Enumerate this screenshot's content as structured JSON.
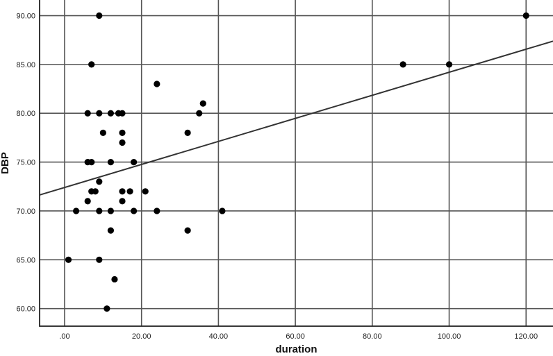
{
  "chart_data": {
    "type": "scatter",
    "title": "",
    "xlabel": "duration",
    "ylabel": "DBP",
    "xlim": [
      -6.5,
      127
    ],
    "ylim": [
      58.2,
      91.6
    ],
    "x_ticks": [
      0,
      20,
      40,
      60,
      80,
      100,
      120
    ],
    "x_tick_labels": [
      ".00",
      "20.00",
      "40.00",
      "60.00",
      "80.00",
      "100.00",
      "120.00"
    ],
    "y_ticks": [
      60,
      65,
      70,
      75,
      80,
      85,
      90
    ],
    "y_tick_labels": [
      "60.00",
      "65.00",
      "70.00",
      "75.00",
      "80.00",
      "85.00",
      "90.00"
    ],
    "grid": true,
    "colors": {
      "points": "#000000",
      "fit_line": "#333333",
      "grid": "#555555"
    },
    "points": [
      {
        "x": 9,
        "y": 90
      },
      {
        "x": 120,
        "y": 90
      },
      {
        "x": 7,
        "y": 85
      },
      {
        "x": 88,
        "y": 85
      },
      {
        "x": 100,
        "y": 85
      },
      {
        "x": 24,
        "y": 83
      },
      {
        "x": 36,
        "y": 81
      },
      {
        "x": 6,
        "y": 80
      },
      {
        "x": 9,
        "y": 80
      },
      {
        "x": 12,
        "y": 80
      },
      {
        "x": 14,
        "y": 80
      },
      {
        "x": 15,
        "y": 80
      },
      {
        "x": 35,
        "y": 80
      },
      {
        "x": 10,
        "y": 78
      },
      {
        "x": 15,
        "y": 78
      },
      {
        "x": 32,
        "y": 78
      },
      {
        "x": 15,
        "y": 77
      },
      {
        "x": 6,
        "y": 75
      },
      {
        "x": 7,
        "y": 75
      },
      {
        "x": 12,
        "y": 75
      },
      {
        "x": 18,
        "y": 75
      },
      {
        "x": 9,
        "y": 73
      },
      {
        "x": 7,
        "y": 72
      },
      {
        "x": 8,
        "y": 72
      },
      {
        "x": 15,
        "y": 72
      },
      {
        "x": 17,
        "y": 72
      },
      {
        "x": 21,
        "y": 72
      },
      {
        "x": 6,
        "y": 71
      },
      {
        "x": 15,
        "y": 71
      },
      {
        "x": 3,
        "y": 70
      },
      {
        "x": 9,
        "y": 70
      },
      {
        "x": 12,
        "y": 70
      },
      {
        "x": 18,
        "y": 70
      },
      {
        "x": 24,
        "y": 70
      },
      {
        "x": 41,
        "y": 70
      },
      {
        "x": 12,
        "y": 68
      },
      {
        "x": 32,
        "y": 68
      },
      {
        "x": 1,
        "y": 65
      },
      {
        "x": 9,
        "y": 65
      },
      {
        "x": 13,
        "y": 63
      },
      {
        "x": 11,
        "y": 60
      }
    ],
    "fit_line": {
      "intercept": 72.4,
      "slope": 0.118
    }
  }
}
